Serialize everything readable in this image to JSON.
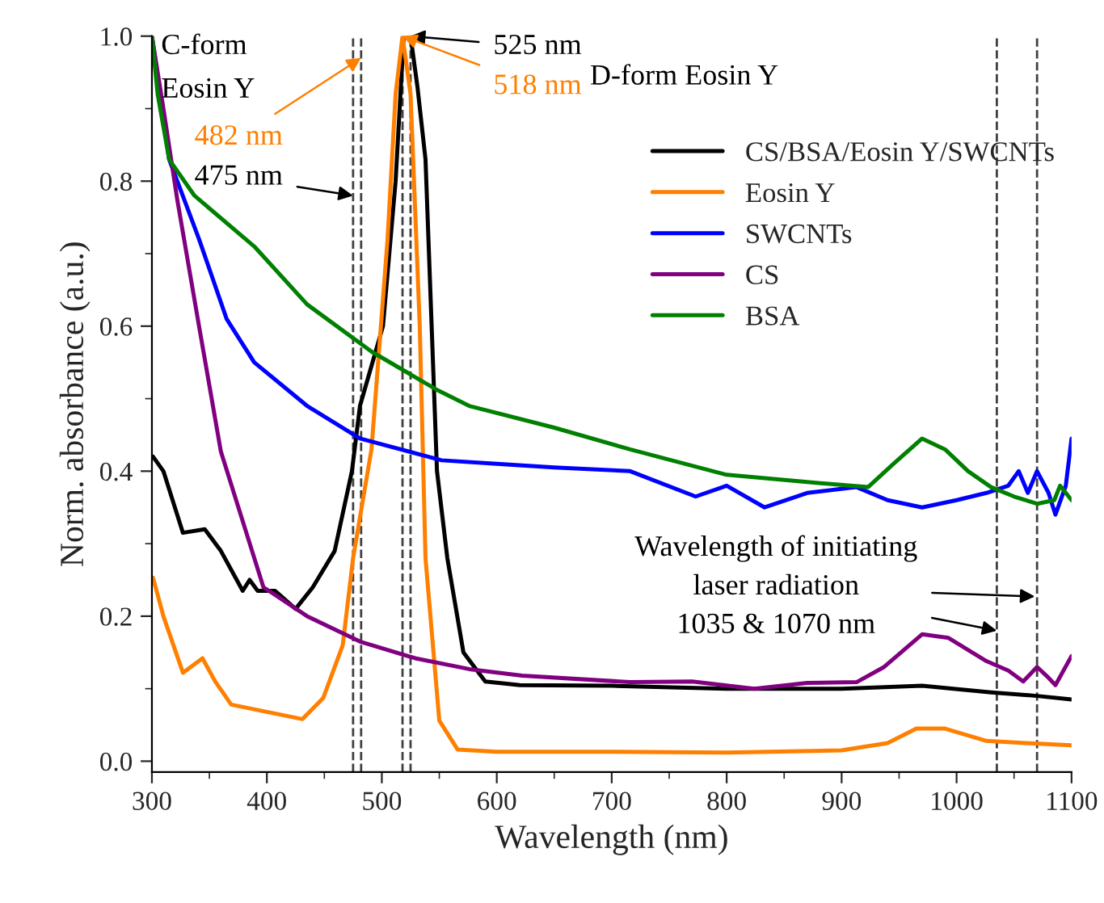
{
  "chart_data": {
    "type": "line",
    "xlabel": "Wavelength (nm)",
    "ylabel": "Norm. absorbance (a.u.)",
    "xlim": [
      300,
      1100
    ],
    "xticks": [
      300,
      400,
      500,
      600,
      700,
      800,
      900,
      1000,
      1100
    ],
    "ylim": [
      -0.015,
      1.0
    ],
    "yticks": [
      {
        "value": 0.0,
        "label": "0.0"
      },
      {
        "value": 0.2,
        "label": "0.2"
      },
      {
        "value": 0.4,
        "label": "0.4"
      },
      {
        "value": 0.6,
        "label": "0.6"
      },
      {
        "value": 0.8,
        "label": "0.8"
      },
      {
        "value": 1.0,
        "label": "1.0"
      }
    ],
    "grid": false,
    "legend": "top right",
    "line_style": "solid",
    "marker": "none",
    "series": [
      {
        "name": "CS/BSA/Eosin Y/SWCNTs",
        "color": "#000000",
        "x": [
          301,
          310,
          327,
          346,
          360,
          379,
          385,
          392,
          407,
          425,
          440,
          459,
          474,
          481,
          501,
          512,
          519,
          525,
          531,
          538,
          548,
          557,
          571,
          590,
          620,
          700,
          800,
          900,
          970,
          1030,
          1070,
          1100
        ],
        "values": [
          0.42,
          0.4,
          0.315,
          0.32,
          0.29,
          0.235,
          0.25,
          0.235,
          0.235,
          0.21,
          0.24,
          0.29,
          0.4,
          0.49,
          0.6,
          0.8,
          1.0,
          1.0,
          0.93,
          0.83,
          0.4,
          0.28,
          0.15,
          0.11,
          0.105,
          0.104,
          0.1,
          0.1,
          0.104,
          0.095,
          0.09,
          0.085
        ]
      },
      {
        "name": "Eosin Y",
        "color": "#ff7f00",
        "x": [
          301,
          310,
          327,
          344,
          355,
          369,
          400,
          431,
          449,
          466,
          475,
          491,
          505,
          512,
          518,
          525,
          533,
          538,
          550,
          566,
          600,
          700,
          800,
          900,
          940,
          965,
          990,
          1026,
          1060,
          1100
        ],
        "values": [
          0.253,
          0.2,
          0.122,
          0.142,
          0.11,
          0.078,
          0.068,
          0.058,
          0.087,
          0.16,
          0.28,
          0.43,
          0.72,
          0.92,
          1.0,
          0.92,
          0.6,
          0.28,
          0.056,
          0.016,
          0.013,
          0.013,
          0.012,
          0.015,
          0.025,
          0.045,
          0.045,
          0.028,
          0.025,
          0.022
        ]
      },
      {
        "name": "SWCNTs",
        "color": "#0000ff",
        "x": [
          300,
          315,
          341,
          365,
          389,
          435,
          481,
          552,
          600,
          650,
          716,
          773,
          800,
          833,
          870,
          913,
          940,
          970,
          1000,
          1026,
          1045,
          1054,
          1062,
          1070,
          1080,
          1086,
          1095,
          1100
        ],
        "values": [
          1.0,
          0.83,
          0.72,
          0.61,
          0.55,
          0.49,
          0.445,
          0.415,
          0.41,
          0.405,
          0.4,
          0.365,
          0.38,
          0.35,
          0.37,
          0.378,
          0.36,
          0.35,
          0.36,
          0.37,
          0.38,
          0.4,
          0.37,
          0.4,
          0.37,
          0.34,
          0.38,
          0.445
        ]
      },
      {
        "name": "CS",
        "color": "#800080",
        "x": [
          300,
          310,
          322,
          341,
          360,
          397,
          435,
          481,
          529,
          576,
          622,
          716,
          770,
          824,
          870,
          913,
          937,
          970,
          993,
          1026,
          1045,
          1058,
          1070,
          1080,
          1086,
          1100
        ],
        "values": [
          1.0,
          0.9,
          0.775,
          0.6,
          0.427,
          0.24,
          0.2,
          0.165,
          0.142,
          0.127,
          0.118,
          0.109,
          0.11,
          0.1,
          0.108,
          0.109,
          0.13,
          0.175,
          0.17,
          0.138,
          0.125,
          0.11,
          0.13,
          0.115,
          0.105,
          0.145
        ]
      },
      {
        "name": "BSA",
        "color": "#008000",
        "x": [
          300,
          305,
          315,
          337,
          389,
          435,
          491,
          547,
          576,
          650,
          716,
          800,
          870,
          923,
          945,
          970,
          990,
          1010,
          1030,
          1050,
          1070,
          1085,
          1090,
          1100
        ],
        "values": [
          1.0,
          0.92,
          0.83,
          0.78,
          0.71,
          0.63,
          0.565,
          0.513,
          0.49,
          0.46,
          0.43,
          0.395,
          0.385,
          0.378,
          0.41,
          0.445,
          0.43,
          0.4,
          0.378,
          0.365,
          0.355,
          0.36,
          0.38,
          0.36
        ]
      }
    ],
    "ref_lines": [
      {
        "axis": "x",
        "value": 475,
        "label": null,
        "color": "#404040",
        "line_style": "dashed"
      },
      {
        "axis": "x",
        "value": 482,
        "label": null,
        "color": "#404040",
        "line_style": "dashed"
      },
      {
        "axis": "x",
        "value": 518,
        "label": null,
        "color": "#404040",
        "line_style": "dashed"
      },
      {
        "axis": "x",
        "value": 525,
        "label": null,
        "color": "#404040",
        "line_style": "dashed"
      },
      {
        "axis": "x",
        "value": 1035,
        "label": null,
        "color": "#404040",
        "line_style": "dashed"
      },
      {
        "axis": "x",
        "value": 1070,
        "label": null,
        "color": "#404040",
        "line_style": "dashed"
      }
    ],
    "annotations": [
      "C-form",
      "Eosin Y",
      {
        "text": "482 nm",
        "x": 482,
        "y": 0.97
      },
      {
        "text": "475 nm",
        "x": 475,
        "y": 0.78
      },
      {
        "text": "525 nm",
        "x": 525,
        "y": 1.0
      },
      {
        "text": "518 nm",
        "x": 518,
        "y": 1.0
      },
      "D-form Eosin Y",
      {
        "text": "Wavelength of initiating\nlaser radiation\n1035 & 1070 nm",
        "x": 1035,
        "y": 0.18
      }
    ]
  }
}
